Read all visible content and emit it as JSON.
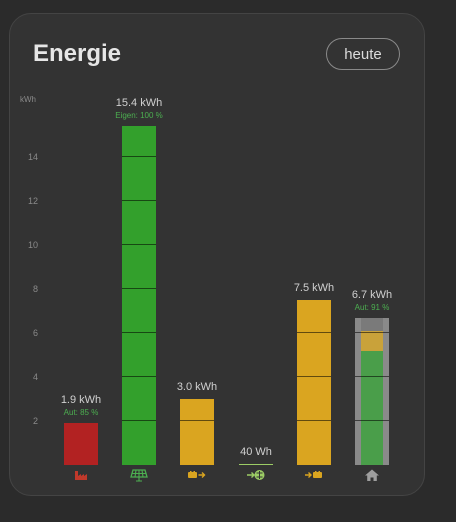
{
  "card": {
    "title": "Energie",
    "period_button": "heute"
  },
  "chart_data": {
    "type": "bar",
    "ylabel": "kWh",
    "ylim": [
      0,
      15.5
    ],
    "yticks": [
      2,
      4,
      6,
      8,
      10,
      12,
      14
    ],
    "bars": [
      {
        "key": "consumption_grid",
        "icon": "factory-icon",
        "value_kwh": 1.9,
        "value_label": "1.9 kWh",
        "sub_label": "Aut: 85 %",
        "color": "#b22222",
        "icon_color": "#c0392b"
      },
      {
        "key": "solar",
        "icon": "solar-panel-icon",
        "value_kwh": 15.4,
        "value_label": "15.4 kWh",
        "sub_label": "Eigen: 100 %",
        "color": "#33a02c",
        "icon_color": "#4caf50"
      },
      {
        "key": "battery_out",
        "icon": "battery-discharge-icon",
        "value_kwh": 3.0,
        "value_label": "3.0 kWh",
        "sub_label": "",
        "color": "#daa520",
        "icon_color": "#daa520"
      },
      {
        "key": "grid_export",
        "icon": "grid-export-icon",
        "value_kwh": 0.04,
        "value_label": "40 Wh",
        "sub_label": "",
        "color": "#9ccc65",
        "icon_color": "#9ccc65"
      },
      {
        "key": "battery_in",
        "icon": "battery-charge-icon",
        "value_kwh": 7.5,
        "value_label": "7.5 kWh",
        "sub_label": "",
        "color": "#daa520",
        "icon_color": "#daa520"
      },
      {
        "key": "home",
        "icon": "home-icon",
        "value_kwh": 6.7,
        "value_label": "6.7 kWh",
        "sub_label": "Aut: 91 %",
        "color": "#8a8a8a",
        "icon_color": "#9e9e9e",
        "stack": [
          {
            "name": "solar",
            "value_kwh": 5.2,
            "color": "#4a9e4a"
          },
          {
            "name": "battery",
            "value_kwh": 0.9,
            "color": "#c9a23a"
          },
          {
            "name": "grid",
            "value_kwh": 0.6,
            "color": "#7a7a7a"
          }
        ]
      }
    ]
  }
}
